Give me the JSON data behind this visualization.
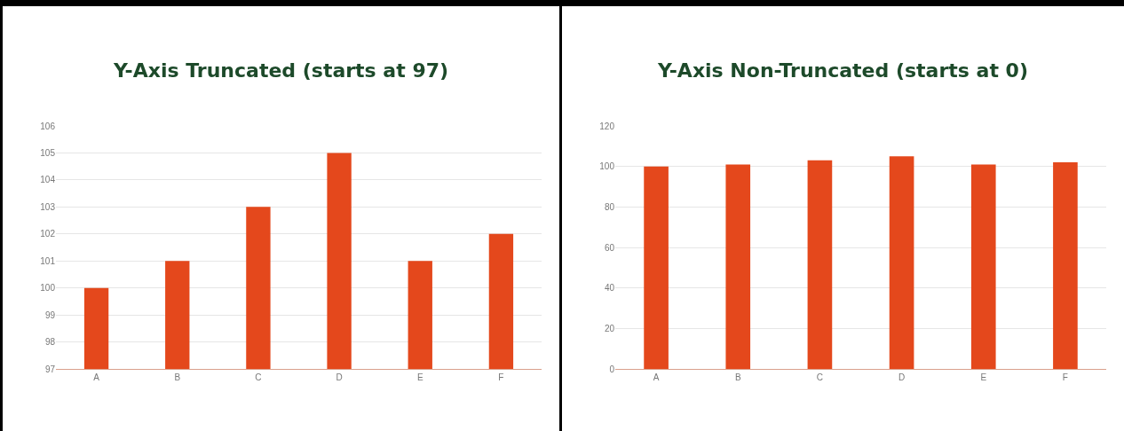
{
  "chart_data": [
    {
      "type": "bar",
      "title": "Y-Axis Truncated (starts at 97)",
      "categories": [
        "A",
        "B",
        "C",
        "D",
        "E",
        "F"
      ],
      "values": [
        100,
        101,
        103,
        105,
        101,
        102
      ],
      "color": "#e4481c",
      "ylim": [
        97,
        106
      ],
      "yticks": [
        97,
        98,
        99,
        100,
        101,
        102,
        103,
        104,
        105,
        106
      ],
      "grid": "y"
    },
    {
      "type": "bar",
      "title": "Y-Axis Non-Truncated (starts at 0)",
      "categories": [
        "A",
        "B",
        "C",
        "D",
        "E",
        "F"
      ],
      "values": [
        100,
        101,
        103,
        105,
        101,
        102
      ],
      "color": "#e4481c",
      "ylim": [
        0,
        120
      ],
      "yticks": [
        0,
        20,
        40,
        60,
        80,
        100,
        120
      ],
      "grid": "y"
    }
  ]
}
